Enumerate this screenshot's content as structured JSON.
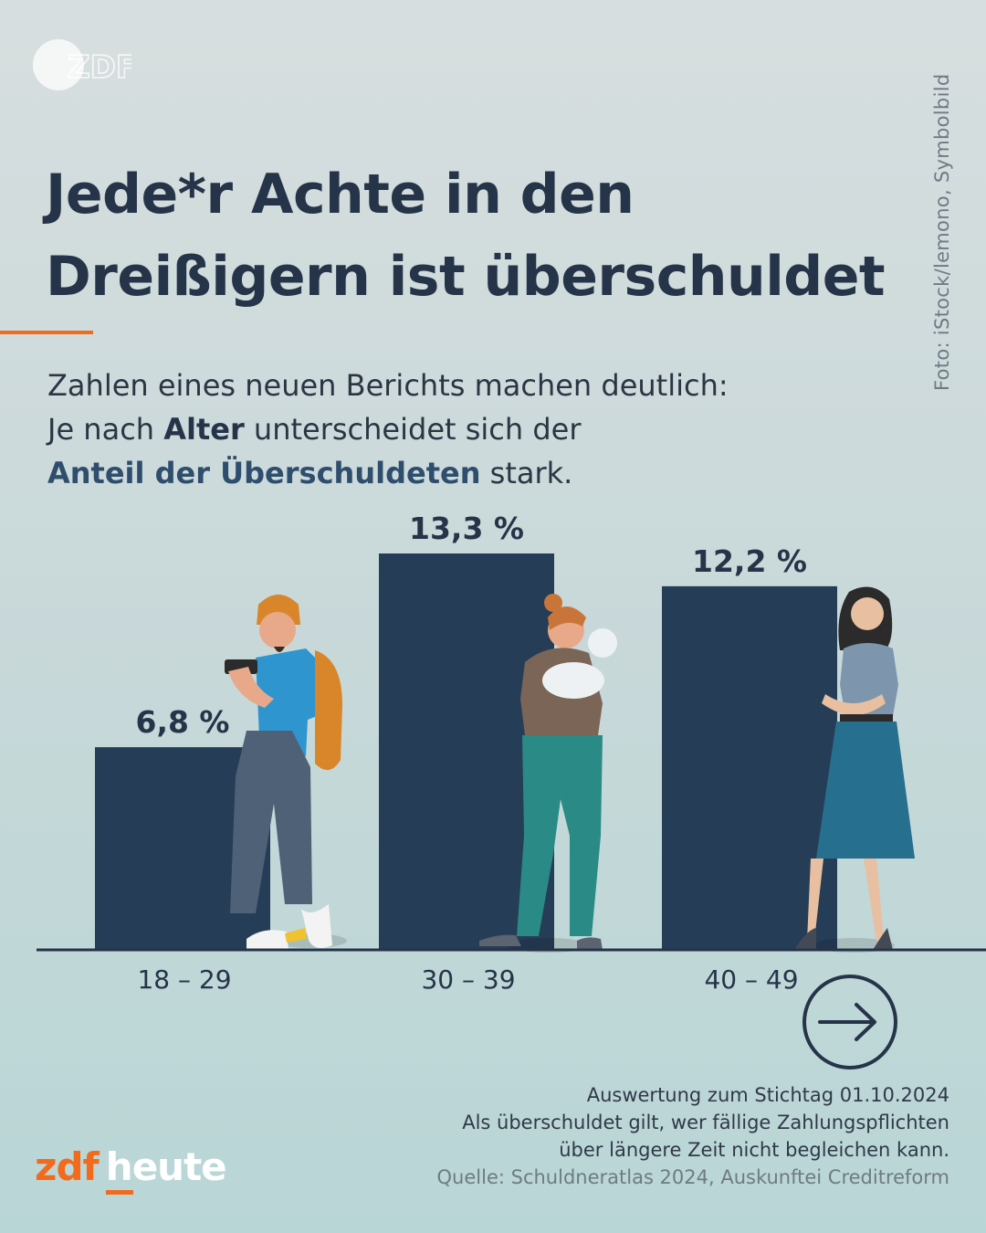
{
  "logo": {
    "text": "ZDF"
  },
  "photo_credit": "Foto: iStock/lemono, Symbolbild",
  "headline": {
    "line1": "Jede*r Achte in den",
    "line2": "Dreißigern ist überschuldet"
  },
  "intro": {
    "line1": "Zahlen eines neuen Berichts machen deutlich:",
    "line2_a": "Je nach ",
    "line2_b": "Alter",
    "line2_c": " unterscheidet sich der",
    "line3_a": "Anteil der Überschuldeten",
    "line3_b": " stark."
  },
  "chart_data": {
    "type": "bar",
    "categories": [
      "18 – 29",
      "30 – 39",
      "40 – 49"
    ],
    "values": [
      6.8,
      13.3,
      12.2
    ],
    "value_labels": [
      "6,8 %",
      "13,3 %",
      "12,2 %"
    ],
    "unit": "%",
    "ylim": [
      0,
      13.3
    ],
    "bar_color": "#263d58",
    "grid": false
  },
  "notes": {
    "line1": "Auswertung zum Stichtag 01.10.2024",
    "line2": "Als überschuldet gilt, wer fällige Zahlungspflichten",
    "line3": "über längere Zeit nicht begleichen kann.",
    "source": "Quelle: Schuldneratlas 2024, Auskunftei Creditreform"
  },
  "brand": {
    "zdf": "zdf",
    "heute": "heute"
  },
  "colors": {
    "accent": "#f26b1d",
    "text": "#263449",
    "bar": "#263d58"
  }
}
